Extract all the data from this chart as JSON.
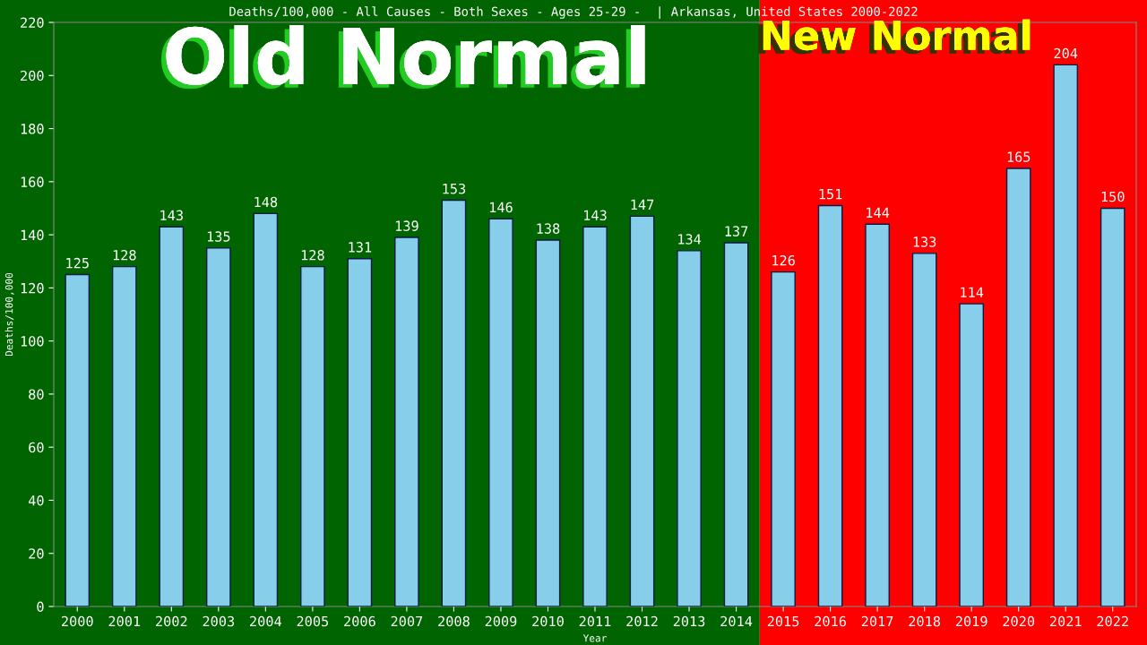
{
  "chart_data": {
    "type": "bar",
    "title": "Deaths/100,000 - All Causes - Both Sexes - Ages 25-29 -  | Arkansas, United States 2000-2022",
    "xlabel": "Year",
    "ylabel": "Deaths/100,000",
    "categories": [
      "2000",
      "2001",
      "2002",
      "2003",
      "2004",
      "2005",
      "2006",
      "2007",
      "2008",
      "2009",
      "2010",
      "2011",
      "2012",
      "2013",
      "2014",
      "2015",
      "2016",
      "2017",
      "2018",
      "2019",
      "2020",
      "2021",
      "2022"
    ],
    "values": [
      125,
      128,
      143,
      135,
      148,
      128,
      131,
      139,
      153,
      146,
      138,
      143,
      147,
      134,
      137,
      126,
      151,
      144,
      133,
      114,
      165,
      204,
      150
    ],
    "color": "#87ceeb",
    "data_labels": true,
    "ylim": [
      0,
      220
    ],
    "yticks": [
      0,
      20,
      40,
      60,
      80,
      100,
      120,
      140,
      160,
      180,
      200,
      220
    ],
    "grid": false,
    "legend": false,
    "bands": [
      {
        "axis": "x",
        "from": "2000",
        "to": "2014",
        "label": "Old Normal",
        "color": "#006400"
      },
      {
        "axis": "x",
        "from": "2015",
        "to": "2022",
        "label": "New Normal",
        "color": "#ff0000"
      }
    ]
  }
}
